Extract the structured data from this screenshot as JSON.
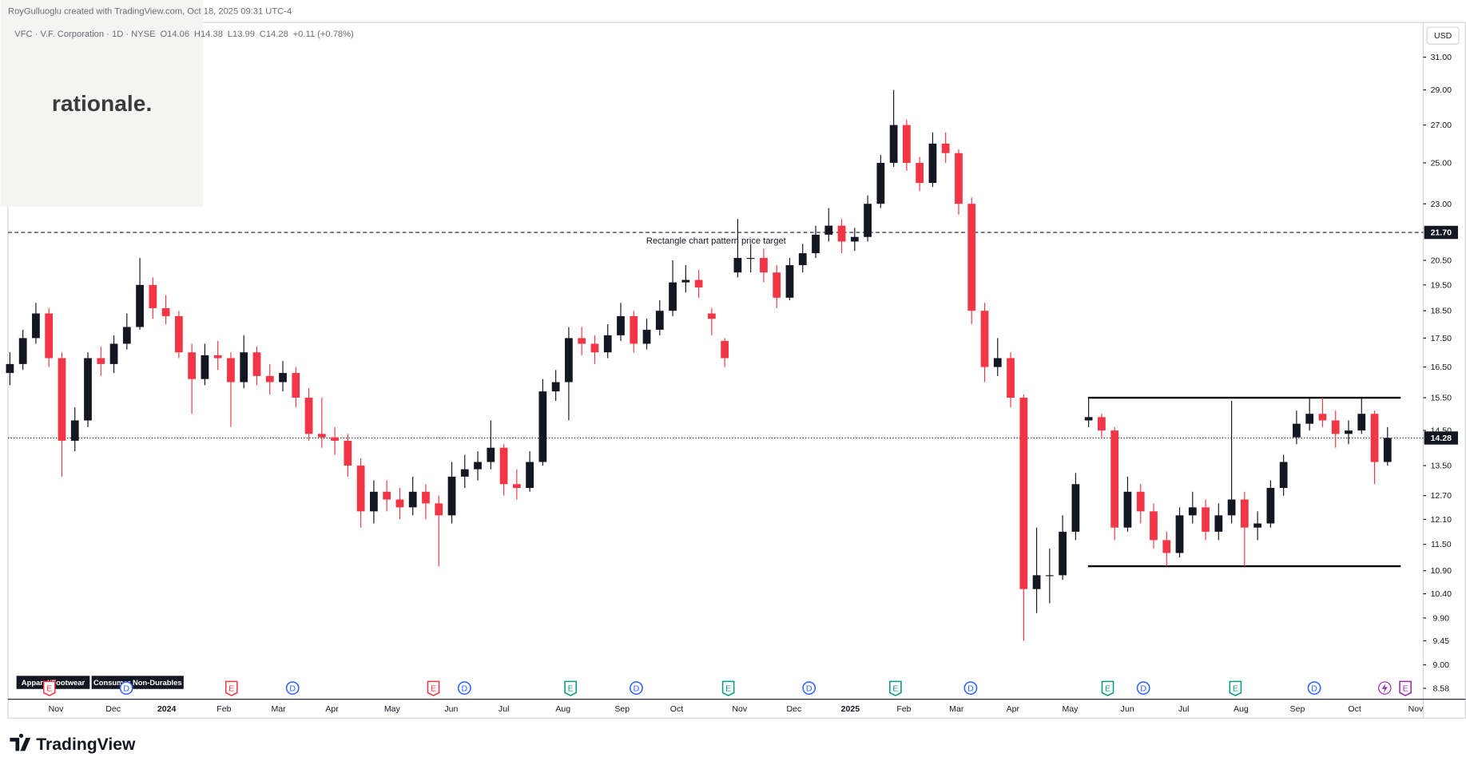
{
  "chart_data": {
    "type": "candlestick",
    "credit": "RoyGulluoglu created with TradingView.com, Oct 18, 2025 09:31 UTC-4",
    "symbol": "VFC · V.F. Corporation · 1D · NYSE",
    "ohlc_legend": [
      "O14.06",
      "H14.38",
      "L13.99",
      "C14.28",
      "+0.11 (+0.78%)"
    ],
    "currency": "USD",
    "logo": "rationale.",
    "footer": "TradingView",
    "tags": [
      "Apparel/Footwear",
      "Consumer Non-Durables"
    ],
    "log_scale": true,
    "up_color": "#131722",
    "down_color": "#f23645",
    "ylim": [
      8.39,
      33.2
    ],
    "yticks": [
      {
        "value": 31,
        "label": "31.00"
      },
      {
        "value": 29,
        "label": "29.00"
      },
      {
        "value": 27,
        "label": "27.00"
      },
      {
        "value": 25,
        "label": "25.00"
      },
      {
        "value": 23,
        "label": "23.00"
      },
      {
        "value": 20.5,
        "label": "20.50"
      },
      {
        "value": 19.5,
        "label": "19.50"
      },
      {
        "value": 18.5,
        "label": "18.50"
      },
      {
        "value": 17.5,
        "label": "17.50"
      },
      {
        "value": 16.5,
        "label": "16.50"
      },
      {
        "value": 15.5,
        "label": "15.50"
      },
      {
        "value": 14.5,
        "label": "14.50"
      },
      {
        "value": 13.5,
        "label": "13.50"
      },
      {
        "value": 12.7,
        "label": "12.70"
      },
      {
        "value": 12.1,
        "label": "12.10"
      },
      {
        "value": 11.5,
        "label": "11.50"
      },
      {
        "value": 10.9,
        "label": "10.90"
      },
      {
        "value": 10.4,
        "label": "10.40"
      },
      {
        "value": 9.9,
        "label": "9.90"
      },
      9.45,
      {
        "value": 9,
        "label": "9.00"
      },
      8.58
    ],
    "categories": [
      "Nov",
      "Dec",
      "2024",
      "Feb",
      "Mar",
      "Apr",
      "May",
      "Jun",
      "Jul",
      "Aug",
      "Sep",
      "Oct",
      "Nov",
      "Dec",
      "2025",
      "Feb",
      "Mar",
      "Apr",
      "May",
      "Jun",
      "Jul",
      "Aug",
      "Sep",
      "Oct",
      "Nov"
    ],
    "target": {
      "value": 21.7,
      "label": "21.70",
      "text": "Rectangle chart pattern price target"
    },
    "rectangle": {
      "top": 15.5,
      "bottom": 11.0
    },
    "last_price": 14.28,
    "events": [
      {
        "label": "E",
        "color": "#f23645"
      },
      {
        "label": "D",
        "color": "#2962ff"
      },
      {
        "label": "E",
        "color": "#f23645"
      },
      {
        "label": "D",
        "color": "#2962ff"
      },
      {
        "label": "E",
        "color": "#f23645"
      },
      {
        "label": "D",
        "color": "#2962ff"
      },
      {
        "label": "E",
        "color": "#089981"
      },
      {
        "label": "D",
        "color": "#2962ff"
      },
      {
        "label": "E",
        "color": "#089981"
      },
      {
        "label": "D",
        "color": "#2962ff"
      },
      {
        "label": "E",
        "color": "#089981"
      },
      {
        "label": "D",
        "color": "#2962ff"
      },
      {
        "label": "E",
        "color": "#089981"
      },
      {
        "label": "D",
        "color": "#2962ff"
      },
      {
        "label": "E",
        "color": "#089981"
      },
      {
        "label": "D",
        "color": "#2962ff"
      },
      {
        "label": "E",
        "color": "#9c27b0"
      }
    ],
    "ohlc": [
      [
        16.3,
        17.0,
        15.9,
        16.6
      ],
      [
        16.6,
        17.8,
        16.4,
        17.5
      ],
      [
        17.5,
        18.8,
        17.3,
        18.4
      ],
      [
        18.4,
        18.6,
        16.5,
        16.8
      ],
      [
        16.8,
        17.0,
        13.2,
        14.2
      ],
      [
        14.2,
        15.2,
        13.9,
        14.8
      ],
      [
        14.8,
        17.0,
        14.6,
        16.8
      ],
      [
        16.8,
        17.2,
        16.2,
        16.6
      ],
      [
        16.6,
        17.6,
        16.3,
        17.3
      ],
      [
        17.3,
        18.4,
        17.1,
        17.9
      ],
      [
        17.9,
        20.6,
        17.8,
        19.5
      ],
      [
        19.5,
        19.8,
        18.2,
        18.6
      ],
      [
        18.6,
        19.1,
        18.0,
        18.3
      ],
      [
        18.3,
        18.5,
        16.8,
        17.0
      ],
      [
        17.0,
        17.3,
        15.0,
        16.1
      ],
      [
        16.1,
        17.3,
        15.9,
        16.9
      ],
      [
        16.9,
        17.4,
        16.4,
        16.8
      ],
      [
        16.8,
        17.0,
        14.6,
        16.0
      ],
      [
        16.0,
        17.6,
        15.8,
        17.0
      ],
      [
        17.0,
        17.2,
        15.9,
        16.2
      ],
      [
        16.2,
        16.6,
        15.6,
        16.0
      ],
      [
        16.0,
        16.7,
        15.7,
        16.3
      ],
      [
        16.3,
        16.5,
        15.2,
        15.5
      ],
      [
        15.5,
        15.8,
        14.2,
        14.4
      ],
      [
        14.4,
        15.5,
        14.0,
        14.3
      ],
      [
        14.3,
        14.6,
        13.8,
        14.2
      ],
      [
        14.2,
        14.4,
        13.2,
        13.5
      ],
      [
        13.5,
        13.7,
        11.9,
        12.3
      ],
      [
        12.3,
        13.1,
        12.0,
        12.8
      ],
      [
        12.8,
        13.1,
        12.3,
        12.6
      ],
      [
        12.6,
        12.9,
        12.1,
        12.4
      ],
      [
        12.4,
        13.2,
        12.2,
        12.8
      ],
      [
        12.8,
        13.0,
        12.1,
        12.5
      ],
      [
        12.5,
        12.7,
        11.0,
        12.2
      ],
      [
        12.2,
        13.6,
        12.0,
        13.2
      ],
      [
        13.2,
        13.8,
        12.9,
        13.4
      ],
      [
        13.4,
        13.9,
        13.1,
        13.6
      ],
      [
        13.6,
        14.8,
        13.4,
        14.0
      ],
      [
        14.0,
        14.1,
        12.7,
        13.0
      ],
      [
        13.0,
        13.4,
        12.6,
        12.9
      ],
      [
        12.9,
        13.9,
        12.8,
        13.6
      ],
      [
        13.6,
        16.1,
        13.5,
        15.7
      ],
      [
        15.7,
        16.4,
        15.4,
        16.0
      ],
      [
        16.0,
        17.9,
        14.8,
        17.5
      ],
      [
        17.5,
        17.9,
        16.9,
        17.3
      ],
      [
        17.3,
        17.6,
        16.6,
        17.0
      ],
      [
        17.0,
        18.0,
        16.8,
        17.6
      ],
      [
        17.6,
        18.8,
        17.4,
        18.3
      ],
      [
        18.3,
        18.5,
        17.0,
        17.3
      ],
      [
        17.3,
        18.2,
        17.1,
        17.8
      ],
      [
        17.8,
        18.9,
        17.6,
        18.5
      ],
      [
        18.5,
        20.5,
        18.3,
        19.6
      ],
      [
        19.6,
        20.3,
        19.2,
        19.7
      ],
      [
        19.7,
        20.1,
        19.0,
        19.4
      ],
      [
        18.4,
        18.6,
        17.6,
        18.2
      ],
      [
        17.4,
        17.5,
        16.5,
        16.8
      ],
      [
        20.0,
        22.3,
        19.8,
        20.6
      ],
      [
        20.6,
        21.2,
        20.0,
        20.6
      ],
      [
        20.6,
        21.0,
        19.6,
        20.0
      ],
      [
        20.0,
        20.3,
        18.6,
        19.0
      ],
      [
        19.0,
        20.6,
        18.9,
        20.3
      ],
      [
        20.3,
        21.2,
        20.0,
        20.8
      ],
      [
        20.8,
        22.0,
        20.6,
        21.6
      ],
      [
        21.6,
        22.8,
        21.3,
        22.0
      ],
      [
        22.0,
        22.3,
        20.8,
        21.3
      ],
      [
        21.3,
        21.9,
        20.9,
        21.5
      ],
      [
        21.5,
        23.4,
        21.3,
        23.0
      ],
      [
        23.0,
        25.4,
        22.8,
        25.0
      ],
      [
        25.0,
        29.0,
        24.8,
        27.0
      ],
      [
        27.0,
        27.3,
        24.6,
        25.0
      ],
      [
        25.0,
        25.3,
        23.6,
        24.0
      ],
      [
        24.0,
        26.6,
        23.8,
        26.0
      ],
      [
        26.0,
        26.6,
        25.0,
        25.5
      ],
      [
        25.5,
        25.7,
        22.5,
        23.0
      ],
      [
        23.0,
        23.3,
        18.0,
        18.5
      ],
      [
        18.5,
        18.8,
        16.0,
        16.5
      ],
      [
        16.5,
        17.5,
        16.2,
        16.8
      ],
      [
        16.8,
        17.0,
        15.2,
        15.5
      ],
      [
        15.5,
        15.6,
        9.45,
        10.5
      ],
      [
        10.5,
        11.9,
        10.0,
        10.8
      ],
      [
        10.8,
        11.4,
        10.2,
        10.8
      ],
      [
        10.8,
        12.2,
        10.7,
        11.8
      ],
      [
        11.8,
        13.3,
        11.6,
        13.0
      ],
      [
        14.8,
        15.5,
        14.6,
        14.9
      ],
      [
        14.9,
        15.0,
        14.3,
        14.5
      ],
      [
        14.5,
        14.6,
        11.6,
        11.9
      ],
      [
        11.9,
        13.2,
        11.8,
        12.8
      ],
      [
        12.8,
        13.0,
        12.0,
        12.3
      ],
      [
        12.3,
        12.5,
        11.4,
        11.6
      ],
      [
        11.6,
        11.8,
        11.0,
        11.3
      ],
      [
        11.3,
        12.4,
        11.2,
        12.2
      ],
      [
        12.2,
        12.8,
        12.0,
        12.4
      ],
      [
        12.4,
        12.6,
        11.6,
        11.8
      ],
      [
        11.8,
        12.5,
        11.6,
        12.2
      ],
      [
        12.2,
        15.4,
        12.0,
        12.6
      ],
      [
        12.6,
        12.8,
        11.0,
        11.9
      ],
      [
        11.9,
        12.3,
        11.6,
        12.0
      ],
      [
        12.0,
        13.1,
        11.9,
        12.9
      ],
      [
        12.9,
        13.8,
        12.7,
        13.6
      ],
      [
        14.3,
        15.1,
        14.1,
        14.7
      ],
      [
        14.7,
        15.5,
        14.5,
        15.0
      ],
      [
        15.0,
        15.5,
        14.6,
        14.8
      ],
      [
        14.8,
        15.1,
        14.0,
        14.4
      ],
      [
        14.4,
        14.8,
        14.1,
        14.5
      ],
      [
        14.5,
        15.5,
        14.4,
        15.0
      ],
      [
        15.0,
        15.1,
        13.0,
        13.6
      ],
      [
        13.6,
        14.6,
        13.5,
        14.28
      ]
    ]
  }
}
